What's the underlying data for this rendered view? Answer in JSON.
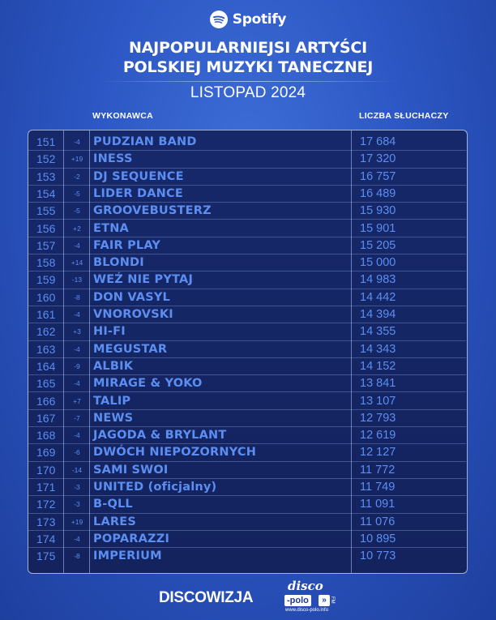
{
  "brand": {
    "name": "Spotify"
  },
  "title_line1": "NAJPOPULARNIEJSI ARTYŚCI",
  "title_line2": "POLSKIEJ MUZYKI TANECZNEJ",
  "subtitle": "LISTOPAD 2024",
  "columns": {
    "artist": "WYKONAWCA",
    "listeners": "LICZBA SŁUCHACZY"
  },
  "rows": [
    {
      "rank": "151",
      "change": "-4",
      "artist": "PUDZIAN BAND",
      "listeners": "17 684"
    },
    {
      "rank": "152",
      "change": "+19",
      "artist": "INESS",
      "listeners": "17 320"
    },
    {
      "rank": "153",
      "change": "-2",
      "artist": "DJ SEQUENCE",
      "listeners": "16 757"
    },
    {
      "rank": "154",
      "change": "-5",
      "artist": "LIDER DANCE",
      "listeners": "16 489"
    },
    {
      "rank": "155",
      "change": "-5",
      "artist": "GROOVEBUSTERZ",
      "listeners": "15 930"
    },
    {
      "rank": "156",
      "change": "+2",
      "artist": "ETNA",
      "listeners": "15 901"
    },
    {
      "rank": "157",
      "change": "-4",
      "artist": "FAIR PLAY",
      "listeners": "15 205"
    },
    {
      "rank": "158",
      "change": "+14",
      "artist": "BLONDI",
      "listeners": "15 000"
    },
    {
      "rank": "159",
      "change": "-13",
      "artist": "WEŹ NIE PYTAJ",
      "listeners": "14 983"
    },
    {
      "rank": "160",
      "change": "-8",
      "artist": "DON VASYL",
      "listeners": "14 442"
    },
    {
      "rank": "161",
      "change": "-4",
      "artist": "VNOROVSKI",
      "listeners": "14 394"
    },
    {
      "rank": "162",
      "change": "+3",
      "artist": "HI-FI",
      "listeners": "14 355"
    },
    {
      "rank": "163",
      "change": "-4",
      "artist": "MEGUSTAR",
      "listeners": "14 343"
    },
    {
      "rank": "164",
      "change": "-9",
      "artist": "ALBIK",
      "listeners": "14 152"
    },
    {
      "rank": "165",
      "change": "-4",
      "artist": "MIRAGE & YOKO",
      "listeners": "13 841"
    },
    {
      "rank": "166",
      "change": "+7",
      "artist": "TALIP",
      "listeners": "13 107"
    },
    {
      "rank": "167",
      "change": "-7",
      "artist": "NEWS",
      "listeners": "12 793"
    },
    {
      "rank": "168",
      "change": "-4",
      "artist": "JAGODA & BRYLANT",
      "listeners": "12 619"
    },
    {
      "rank": "169",
      "change": "-6",
      "artist": "DWÓCH NIEPOZORNYCH",
      "listeners": "12 127"
    },
    {
      "rank": "170",
      "change": "-14",
      "artist": "SAMI SWOI",
      "listeners": "11 772"
    },
    {
      "rank": "171",
      "change": "-3",
      "artist": "UNITED (oficjalny)",
      "listeners": "11 749"
    },
    {
      "rank": "172",
      "change": "-3",
      "artist": "B-QLL",
      "listeners": "11 091"
    },
    {
      "rank": "173",
      "change": "+19",
      "artist": "LARES",
      "listeners": "11 076"
    },
    {
      "rank": "174",
      "change": "-4",
      "artist": "POPARAZZI",
      "listeners": "10 895"
    },
    {
      "rank": "175",
      "change": "-8",
      "artist": "IMPERIUM",
      "listeners": "10 773"
    }
  ],
  "footer": {
    "left": "DISCOWIZJA",
    "logo_word": "disco",
    "logo_box": "-polo",
    "logo_chevron": "»",
    "logo_fm": "FM",
    "logo_url": "www.disco-polo.info"
  },
  "colors": {
    "accent_text": "#5b8ef0",
    "panel": "#15265f",
    "background": "#2c57c4"
  }
}
